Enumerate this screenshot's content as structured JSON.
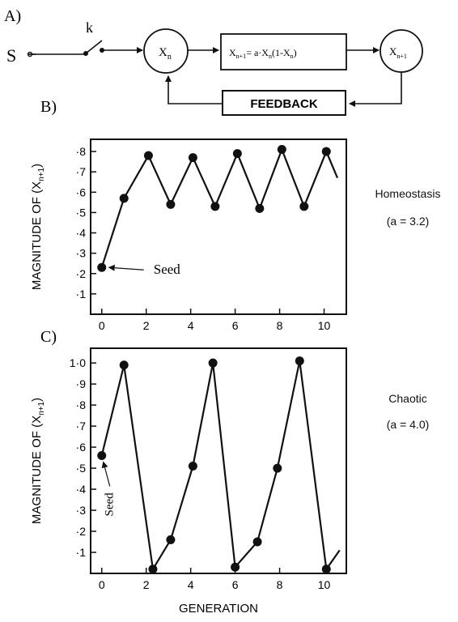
{
  "panel_a": {
    "label": "A)",
    "input": "S",
    "switch": "k",
    "node_in": "X",
    "node_in_sub": "n",
    "node_out": "X",
    "node_out_sub": "n+1",
    "eq": {
      "lhs": "X",
      "lhs_sub": "n+1",
      "mid": "= a·X",
      "mid_sub": "n",
      "tail": "(1-X",
      "tail_sub": "n",
      "end": ")"
    },
    "feedback": "FEEDBACK"
  },
  "side_labels": {
    "b_title": "Homeostasis",
    "b_param": "(a = 3.2)",
    "c_title": "Chaotic",
    "c_param": "(a = 4.0)"
  },
  "chart_data": [
    {
      "panel": "B)",
      "type": "line",
      "ylabel_main": "MAGNITUDE OF (X",
      "ylabel_sub": "n+1",
      "ylabel_end": ")",
      "xlim": [
        -0.5,
        11
      ],
      "ylim": [
        0,
        0.86
      ],
      "xticks": [
        0,
        2,
        4,
        6,
        8,
        10
      ],
      "xtick_labels": [
        "0",
        "2",
        "4",
        "6",
        "8",
        "10"
      ],
      "yticks": [
        0.1,
        0.2,
        0.3,
        0.4,
        0.5,
        0.6,
        0.7,
        0.8
      ],
      "ytick_labels": [
        "·1",
        "·2",
        "·3",
        "·4",
        "·5",
        "·6",
        "·7",
        "·8"
      ],
      "x": [
        0,
        1,
        2.1,
        3.1,
        4.1,
        5.1,
        6.1,
        7.1,
        8.1,
        9.1,
        10.1,
        10.6
      ],
      "y": [
        0.23,
        0.57,
        0.78,
        0.54,
        0.77,
        0.53,
        0.79,
        0.52,
        0.81,
        0.53,
        0.8,
        0.67
      ],
      "markers": [
        true,
        true,
        true,
        true,
        true,
        true,
        true,
        true,
        true,
        true,
        true,
        false
      ],
      "annotation": {
        "text": "Seed",
        "x": 0,
        "y": 0.23
      }
    },
    {
      "panel": "C)",
      "type": "line",
      "ylabel_main": "MAGNITUDE OF (X",
      "ylabel_sub": "n+1",
      "ylabel_end": ")",
      "xlabel": "GENERATION",
      "xlim": [
        -0.5,
        11
      ],
      "ylim": [
        0,
        1.07
      ],
      "xticks": [
        0,
        2,
        4,
        6,
        8,
        10
      ],
      "xtick_labels": [
        "0",
        "2",
        "4",
        "6",
        "8",
        "10"
      ],
      "yticks": [
        0.1,
        0.2,
        0.3,
        0.4,
        0.5,
        0.6,
        0.7,
        0.8,
        0.9,
        1.0
      ],
      "ytick_labels": [
        "·1",
        "·2",
        "·3",
        "·4",
        "·5",
        "·6",
        "·7",
        "·8",
        "·9",
        "1·0"
      ],
      "x": [
        0,
        1,
        2.3,
        3.1,
        4.1,
        5,
        6,
        7,
        7.9,
        8.9,
        10.1,
        10.7
      ],
      "y": [
        0.56,
        0.99,
        0.02,
        0.16,
        0.51,
        1.0,
        0.03,
        0.15,
        0.5,
        1.01,
        0.02,
        0.11
      ],
      "markers": [
        true,
        true,
        true,
        true,
        true,
        true,
        true,
        true,
        true,
        true,
        true,
        false
      ],
      "annotation": {
        "text": "Seed",
        "x": 0,
        "y": 0.56
      }
    }
  ]
}
